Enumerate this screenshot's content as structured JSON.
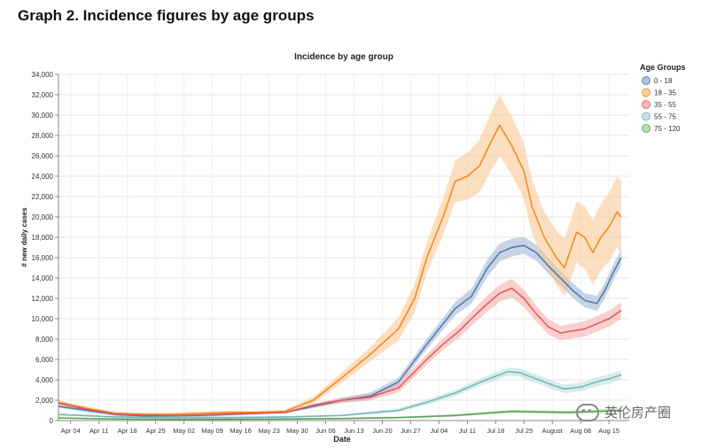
{
  "page": {
    "heading": "Graph 2. Incidence figures by age groups"
  },
  "chart_data": {
    "type": "line",
    "title": "Incidence by age group",
    "xlabel": "Date",
    "ylabel": "# new daily cases",
    "ylim": [
      0,
      34000
    ],
    "yticks": [
      0,
      2000,
      4000,
      6000,
      8000,
      10000,
      12000,
      14000,
      16000,
      18000,
      20000,
      22000,
      24000,
      26000,
      28000,
      30000,
      32000,
      34000
    ],
    "ytick_labels": [
      "0",
      "2,000",
      "4,000",
      "6,000",
      "8,000",
      "10,000",
      "12,000",
      "14,000",
      "16,000",
      "18,000",
      "20,000",
      "22,000",
      "24,000",
      "26,000",
      "28,000",
      "30,000",
      "32,000",
      "34,000"
    ],
    "x_range": [
      "2021-04-01",
      "2021-08-20"
    ],
    "x_ticks": [
      {
        "date": "2021-04-04",
        "label": "Apr 04"
      },
      {
        "date": "2021-04-11",
        "label": "Apr 11"
      },
      {
        "date": "2021-04-18",
        "label": "Apr 18"
      },
      {
        "date": "2021-04-25",
        "label": "Apr 25"
      },
      {
        "date": "2021-05-02",
        "label": "May 02"
      },
      {
        "date": "2021-05-09",
        "label": "May 09"
      },
      {
        "date": "2021-05-16",
        "label": "May 16"
      },
      {
        "date": "2021-05-23",
        "label": "May 23"
      },
      {
        "date": "2021-05-30",
        "label": "May 30"
      },
      {
        "date": "2021-06-06",
        "label": "Jun 06"
      },
      {
        "date": "2021-06-13",
        "label": "Jun 13"
      },
      {
        "date": "2021-06-20",
        "label": "Jun 20"
      },
      {
        "date": "2021-06-27",
        "label": "Jun 27"
      },
      {
        "date": "2021-07-04",
        "label": "Jul 04"
      },
      {
        "date": "2021-07-11",
        "label": "Jul 11"
      },
      {
        "date": "2021-07-18",
        "label": "Jul 18"
      },
      {
        "date": "2021-07-25",
        "label": "Jul 25"
      },
      {
        "date": "2021-08-01",
        "label": "August"
      },
      {
        "date": "2021-08-08",
        "label": "Aug 08"
      },
      {
        "date": "2021-08-15",
        "label": "Aug 15"
      }
    ],
    "grid": true,
    "legend": {
      "title": "Age Groups",
      "position": "right"
    },
    "confidence_band": true,
    "series": [
      {
        "name": "0 - 18",
        "color": "#4c78a8",
        "fill": "#9ab3d3",
        "points": [
          [
            "2021-04-01",
            1400
          ],
          [
            "2021-04-08",
            1000
          ],
          [
            "2021-04-15",
            600
          ],
          [
            "2021-04-22",
            450
          ],
          [
            "2021-04-29",
            450
          ],
          [
            "2021-05-06",
            500
          ],
          [
            "2021-05-13",
            600
          ],
          [
            "2021-05-20",
            700
          ],
          [
            "2021-05-27",
            800
          ],
          [
            "2021-06-03",
            1400
          ],
          [
            "2021-06-10",
            2000
          ],
          [
            "2021-06-17",
            2400
          ],
          [
            "2021-06-24",
            3800
          ],
          [
            "2021-07-01",
            7500
          ],
          [
            "2021-07-05",
            9500
          ],
          [
            "2021-07-08",
            11000
          ],
          [
            "2021-07-12",
            12200
          ],
          [
            "2021-07-16",
            15000
          ],
          [
            "2021-07-19",
            16500
          ],
          [
            "2021-07-22",
            17000
          ],
          [
            "2021-07-25",
            17200
          ],
          [
            "2021-07-28",
            16500
          ],
          [
            "2021-07-31",
            15200
          ],
          [
            "2021-08-03",
            14000
          ],
          [
            "2021-08-06",
            12800
          ],
          [
            "2021-08-09",
            11800
          ],
          [
            "2021-08-12",
            11500
          ],
          [
            "2021-08-14",
            12800
          ],
          [
            "2021-08-16",
            14500
          ],
          [
            "2021-08-18",
            16000
          ]
        ],
        "spread": [
          [
            "2021-04-01",
            150
          ],
          [
            "2021-05-27",
            100
          ],
          [
            "2021-07-01",
            500
          ],
          [
            "2021-07-19",
            900
          ],
          [
            "2021-07-28",
            800
          ],
          [
            "2021-08-09",
            700
          ],
          [
            "2021-08-18",
            800
          ]
        ]
      },
      {
        "name": "18 - 35",
        "color": "#f58518",
        "fill": "#f9c58c",
        "points": [
          [
            "2021-04-01",
            1800
          ],
          [
            "2021-04-08",
            1200
          ],
          [
            "2021-04-15",
            700
          ],
          [
            "2021-04-22",
            600
          ],
          [
            "2021-04-29",
            600
          ],
          [
            "2021-05-06",
            700
          ],
          [
            "2021-05-13",
            800
          ],
          [
            "2021-05-20",
            800
          ],
          [
            "2021-05-27",
            900
          ],
          [
            "2021-06-03",
            2000
          ],
          [
            "2021-06-10",
            4200
          ],
          [
            "2021-06-17",
            6500
          ],
          [
            "2021-06-24",
            9000
          ],
          [
            "2021-06-28",
            12000
          ],
          [
            "2021-07-01",
            16000
          ],
          [
            "2021-07-05",
            20000
          ],
          [
            "2021-07-08",
            23500
          ],
          [
            "2021-07-11",
            24000
          ],
          [
            "2021-07-14",
            25000
          ],
          [
            "2021-07-17",
            27500
          ],
          [
            "2021-07-19",
            29000
          ],
          [
            "2021-07-22",
            27000
          ],
          [
            "2021-07-25",
            24500
          ],
          [
            "2021-07-27",
            21000
          ],
          [
            "2021-07-30",
            18000
          ],
          [
            "2021-08-02",
            16000
          ],
          [
            "2021-08-04",
            15000
          ],
          [
            "2021-08-07",
            18500
          ],
          [
            "2021-08-09",
            18000
          ],
          [
            "2021-08-11",
            16500
          ],
          [
            "2021-08-13",
            18000
          ],
          [
            "2021-08-15",
            19000
          ],
          [
            "2021-08-17",
            20500
          ],
          [
            "2021-08-18",
            20000
          ]
        ],
        "spread": [
          [
            "2021-04-01",
            200
          ],
          [
            "2021-05-27",
            150
          ],
          [
            "2021-06-17",
            700
          ],
          [
            "2021-07-05",
            1800
          ],
          [
            "2021-07-19",
            3000
          ],
          [
            "2021-07-30",
            2500
          ],
          [
            "2021-08-07",
            3000
          ],
          [
            "2021-08-18",
            3500
          ]
        ]
      },
      {
        "name": "35 - 55",
        "color": "#e45756",
        "fill": "#f2a9a8",
        "points": [
          [
            "2021-04-01",
            1700
          ],
          [
            "2021-04-08",
            1100
          ],
          [
            "2021-04-15",
            650
          ],
          [
            "2021-04-22",
            550
          ],
          [
            "2021-04-29",
            500
          ],
          [
            "2021-05-06",
            550
          ],
          [
            "2021-05-13",
            650
          ],
          [
            "2021-05-20",
            700
          ],
          [
            "2021-05-27",
            800
          ],
          [
            "2021-06-03",
            1500
          ],
          [
            "2021-06-10",
            2000
          ],
          [
            "2021-06-17",
            2300
          ],
          [
            "2021-06-24",
            3200
          ],
          [
            "2021-07-01",
            6000
          ],
          [
            "2021-07-05",
            7500
          ],
          [
            "2021-07-09",
            8800
          ],
          [
            "2021-07-12",
            10000
          ],
          [
            "2021-07-16",
            11500
          ],
          [
            "2021-07-19",
            12500
          ],
          [
            "2021-07-22",
            13000
          ],
          [
            "2021-07-25",
            12000
          ],
          [
            "2021-07-28",
            10500
          ],
          [
            "2021-07-31",
            9200
          ],
          [
            "2021-08-03",
            8600
          ],
          [
            "2021-08-06",
            8800
          ],
          [
            "2021-08-09",
            9000
          ],
          [
            "2021-08-12",
            9500
          ],
          [
            "2021-08-15",
            10000
          ],
          [
            "2021-08-18",
            10800
          ]
        ],
        "spread": [
          [
            "2021-04-01",
            150
          ],
          [
            "2021-05-27",
            100
          ],
          [
            "2021-07-01",
            500
          ],
          [
            "2021-07-22",
            900
          ],
          [
            "2021-08-03",
            700
          ],
          [
            "2021-08-18",
            800
          ]
        ]
      },
      {
        "name": "55 - 75",
        "color": "#72b7b2",
        "fill": "#b8dcd9",
        "points": [
          [
            "2021-04-01",
            600
          ],
          [
            "2021-04-15",
            350
          ],
          [
            "2021-04-29",
            300
          ],
          [
            "2021-05-13",
            300
          ],
          [
            "2021-05-27",
            350
          ],
          [
            "2021-06-10",
            500
          ],
          [
            "2021-06-24",
            1000
          ],
          [
            "2021-07-01",
            1800
          ],
          [
            "2021-07-08",
            2700
          ],
          [
            "2021-07-15",
            3900
          ],
          [
            "2021-07-21",
            4800
          ],
          [
            "2021-07-24",
            4700
          ],
          [
            "2021-07-28",
            4100
          ],
          [
            "2021-08-01",
            3500
          ],
          [
            "2021-08-04",
            3100
          ],
          [
            "2021-08-08",
            3300
          ],
          [
            "2021-08-12",
            3800
          ],
          [
            "2021-08-15",
            4100
          ],
          [
            "2021-08-18",
            4500
          ]
        ],
        "spread": [
          [
            "2021-04-01",
            100
          ],
          [
            "2021-06-10",
            100
          ],
          [
            "2021-07-21",
            400
          ],
          [
            "2021-08-18",
            450
          ]
        ]
      },
      {
        "name": "75 - 120",
        "color": "#54a24b",
        "fill": "#a6d4a0",
        "points": [
          [
            "2021-04-01",
            250
          ],
          [
            "2021-04-15",
            150
          ],
          [
            "2021-04-29",
            120
          ],
          [
            "2021-05-13",
            120
          ],
          [
            "2021-05-27",
            150
          ],
          [
            "2021-06-10",
            200
          ],
          [
            "2021-06-24",
            300
          ],
          [
            "2021-07-08",
            500
          ],
          [
            "2021-07-15",
            700
          ],
          [
            "2021-07-22",
            900
          ],
          [
            "2021-07-29",
            850
          ],
          [
            "2021-08-05",
            800
          ],
          [
            "2021-08-12",
            900
          ],
          [
            "2021-08-18",
            1000
          ]
        ],
        "spread": [
          [
            "2021-04-01",
            60
          ],
          [
            "2021-06-24",
            80
          ],
          [
            "2021-07-22",
            150
          ],
          [
            "2021-08-18",
            200
          ]
        ]
      }
    ]
  },
  "watermark": {
    "text": "英伦房产圈",
    "icon": "chat-bubble-icon"
  }
}
